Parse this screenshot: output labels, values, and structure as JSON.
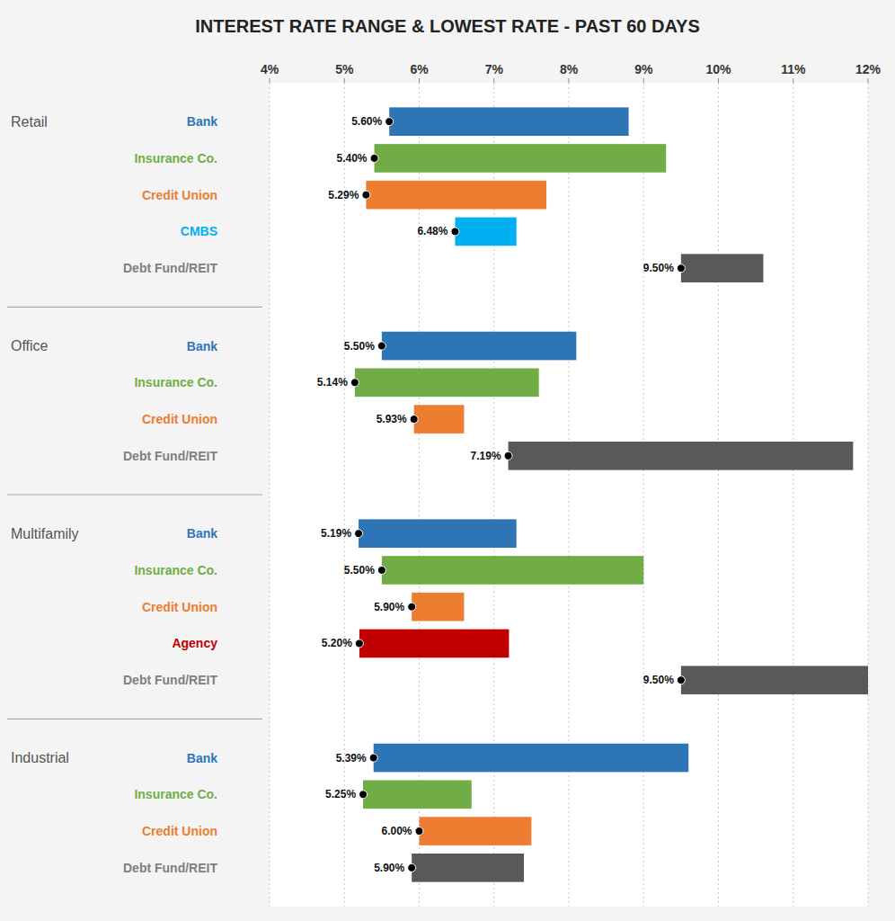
{
  "chart_data": {
    "type": "bar",
    "orientation": "horizontal",
    "title": "INTEREST RATE RANGE & LOWEST RATE - PAST 60 DAYS",
    "xlim": [
      0.04,
      0.12
    ],
    "xticks": [
      {
        "value": 0.04,
        "label": "4%"
      },
      {
        "value": 0.05,
        "label": "5%"
      },
      {
        "value": 0.06,
        "label": "6%"
      },
      {
        "value": 0.07,
        "label": "7%"
      },
      {
        "value": 0.08,
        "label": "8%"
      },
      {
        "value": 0.09,
        "label": "9%"
      },
      {
        "value": 0.1,
        "label": "10%"
      },
      {
        "value": 0.11,
        "label": "11%"
      },
      {
        "value": 0.12,
        "label": "12%"
      }
    ],
    "grid": true,
    "data_labels": true,
    "dot_color": "#000000",
    "groups": [
      {
        "name": "Retail",
        "categories": [
          "Bank",
          "Insurance Co.",
          "Credit Union",
          "CMBS",
          "Debt Fund/REIT"
        ],
        "colors": [
          "#2e75b6",
          "#70ad47",
          "#ed7d31",
          "#00b0f0",
          "#595959"
        ],
        "label_colors": [
          "#2e75b6",
          "#70ad47",
          "#ed7d31",
          "#00b0f0",
          "#808080"
        ],
        "starts": [
          0.056,
          0.054,
          0.0529,
          0.0648,
          0.095
        ],
        "ends": [
          0.088,
          0.093,
          0.077,
          0.073,
          0.106
        ],
        "values": [
          0.056,
          0.054,
          0.0529,
          0.0648,
          0.095
        ],
        "value_labels": [
          "5.60%",
          "5.40%",
          "5.29%",
          "6.48%",
          "9.50%"
        ]
      },
      {
        "name": "Office",
        "categories": [
          "Bank",
          "Insurance Co.",
          "Credit Union",
          "Debt Fund/REIT"
        ],
        "colors": [
          "#2e75b6",
          "#70ad47",
          "#ed7d31",
          "#595959"
        ],
        "label_colors": [
          "#2e75b6",
          "#70ad47",
          "#ed7d31",
          "#808080"
        ],
        "starts": [
          0.055,
          0.0514,
          0.0593,
          0.0719
        ],
        "ends": [
          0.081,
          0.076,
          0.066,
          0.118
        ],
        "values": [
          0.055,
          0.0514,
          0.0593,
          0.0719
        ],
        "value_labels": [
          "5.50%",
          "5.14%",
          "5.93%",
          "7.19%"
        ]
      },
      {
        "name": "Multifamily",
        "categories": [
          "Bank",
          "Insurance Co.",
          "Credit Union",
          "Agency",
          "Debt Fund/REIT"
        ],
        "colors": [
          "#2e75b6",
          "#70ad47",
          "#ed7d31",
          "#c00000",
          "#595959"
        ],
        "label_colors": [
          "#2e75b6",
          "#70ad47",
          "#ed7d31",
          "#c00000",
          "#808080"
        ],
        "starts": [
          0.0519,
          0.055,
          0.059,
          0.052,
          0.095
        ],
        "ends": [
          0.073,
          0.09,
          0.066,
          0.072,
          0.12
        ],
        "values": [
          0.0519,
          0.055,
          0.059,
          0.052,
          0.095
        ],
        "value_labels": [
          "5.19%",
          "5.50%",
          "5.90%",
          "5.20%",
          "9.50%"
        ]
      },
      {
        "name": "Industrial",
        "categories": [
          "Bank",
          "Insurance Co.",
          "Credit Union",
          "Debt Fund/REIT"
        ],
        "colors": [
          "#2e75b6",
          "#70ad47",
          "#ed7d31",
          "#595959"
        ],
        "label_colors": [
          "#2e75b6",
          "#70ad47",
          "#ed7d31",
          "#808080"
        ],
        "starts": [
          0.0539,
          0.0525,
          0.06,
          0.059
        ],
        "ends": [
          0.096,
          0.067,
          0.075,
          0.074
        ],
        "values": [
          0.0539,
          0.0525,
          0.06,
          0.059
        ],
        "value_labels": [
          "5.39%",
          "5.25%",
          "6.00%",
          "5.90%"
        ]
      }
    ]
  }
}
